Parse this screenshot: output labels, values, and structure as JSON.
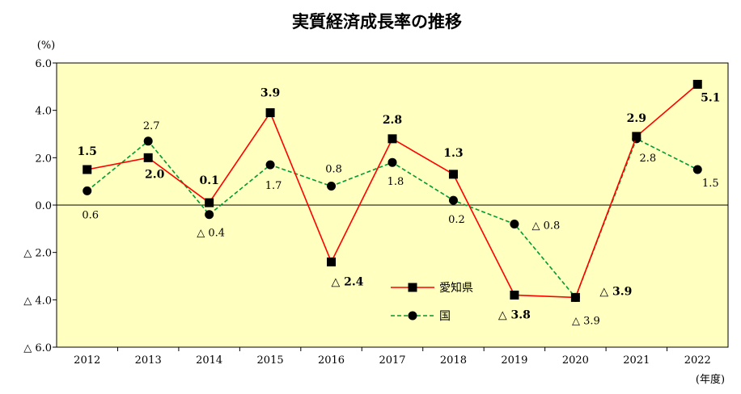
{
  "chart_data": {
    "type": "line",
    "title": "実質経済成長率の推移",
    "ylabel": "(%)",
    "xlabel": "(年度)",
    "categories": [
      "2012",
      "2013",
      "2014",
      "2015",
      "2016",
      "2017",
      "2018",
      "2019",
      "2020",
      "2021",
      "2022"
    ],
    "ylim": [
      -6.0,
      6.0
    ],
    "yticks": [
      {
        "value": 6.0,
        "label": "6.0"
      },
      {
        "value": 4.0,
        "label": "4.0"
      },
      {
        "value": 2.0,
        "label": "2.0"
      },
      {
        "value": 0.0,
        "label": "0.0"
      },
      {
        "value": -2.0,
        "label": "△ 2.0"
      },
      {
        "value": -4.0,
        "label": "△ 4.0"
      },
      {
        "value": -6.0,
        "label": "△ 6.0"
      }
    ],
    "grid": false,
    "legend_position": "lower-right inside plot",
    "background_color": "#FFFFC0",
    "series": [
      {
        "name": "愛知県",
        "color": "#FF0000",
        "line_style": "solid",
        "marker": "square",
        "values": [
          1.5,
          2.0,
          0.1,
          3.9,
          -2.4,
          2.8,
          1.3,
          -3.8,
          -3.9,
          2.9,
          5.1
        ],
        "value_labels": [
          "1.5",
          "2.0",
          "0.1",
          "3.9",
          "△ 2.4",
          "2.8",
          "1.3",
          "△ 3.8",
          "△ 3.9",
          "2.9",
          "5.1"
        ]
      },
      {
        "name": "国",
        "color": "#009933",
        "line_style": "dashed",
        "marker": "circle",
        "values": [
          0.6,
          2.7,
          -0.4,
          1.7,
          0.8,
          1.8,
          0.2,
          -0.8,
          -3.9,
          2.8,
          1.5
        ],
        "value_labels": [
          "0.6",
          "2.7",
          "△ 0.4",
          "1.7",
          "0.8",
          "1.8",
          "0.2",
          "△ 0.8",
          "△ 3.9",
          "2.8",
          "1.5"
        ]
      }
    ]
  }
}
